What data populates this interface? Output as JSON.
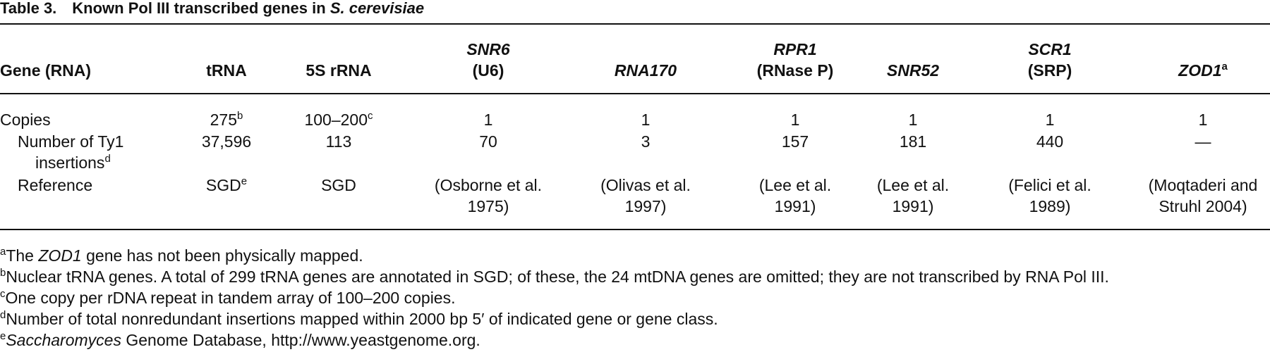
{
  "title": {
    "label": "Table 3.",
    "text": [
      {
        "text": "Known Pol III transcribed genes in "
      },
      {
        "text": "S. cerevisiae",
        "style": "italic"
      }
    ]
  },
  "table": {
    "header": [
      [
        [
          {
            "text": "Gene (RNA)"
          }
        ]
      ],
      [
        [
          {
            "text": "tRNA"
          }
        ]
      ],
      [
        [
          {
            "text": "5S rRNA"
          }
        ]
      ],
      [
        [
          {
            "text": "SNR6",
            "style": "italic"
          }
        ],
        [
          {
            "text": "(U6)"
          }
        ]
      ],
      [
        [
          {
            "text": "RNA170",
            "style": "italic"
          }
        ]
      ],
      [
        [
          {
            "text": "RPR1",
            "style": "italic"
          }
        ],
        [
          {
            "text": "(RNase P)"
          }
        ]
      ],
      [
        [
          {
            "text": "SNR52",
            "style": "italic"
          }
        ]
      ],
      [
        [
          {
            "text": "SCR1",
            "style": "italic"
          }
        ],
        [
          {
            "text": "(SRP)"
          }
        ]
      ],
      [
        [
          {
            "text": "ZOD1",
            "style": "italic"
          },
          {
            "text": "a",
            "style": "sup"
          }
        ]
      ]
    ],
    "rows": [
      [
        [
          [
            {
              "text": "Copies"
            }
          ]
        ],
        [
          [
            {
              "text": "275"
            },
            {
              "text": "b",
              "style": "sup"
            }
          ]
        ],
        [
          [
            {
              "text": "100–200"
            },
            {
              "text": "c",
              "style": "sup"
            }
          ]
        ],
        [
          [
            {
              "text": "1"
            }
          ]
        ],
        [
          [
            {
              "text": "1"
            }
          ]
        ],
        [
          [
            {
              "text": "1"
            }
          ]
        ],
        [
          [
            {
              "text": "1"
            }
          ]
        ],
        [
          [
            {
              "text": "1"
            }
          ]
        ],
        [
          [
            {
              "text": "1"
            }
          ]
        ]
      ],
      [
        [
          [
            {
              "text": "Number of Ty1"
            }
          ],
          [
            {
              "text": "insertions"
            },
            {
              "text": "d",
              "style": "sup"
            }
          ]
        ],
        [
          [
            {
              "text": "37,596"
            }
          ]
        ],
        [
          [
            {
              "text": "113"
            }
          ]
        ],
        [
          [
            {
              "text": "70"
            }
          ]
        ],
        [
          [
            {
              "text": "3"
            }
          ]
        ],
        [
          [
            {
              "text": "157"
            }
          ]
        ],
        [
          [
            {
              "text": "181"
            }
          ]
        ],
        [
          [
            {
              "text": "440"
            }
          ]
        ],
        [
          [
            {
              "text": "—"
            }
          ]
        ]
      ],
      [
        [
          [
            {
              "text": "Reference"
            }
          ]
        ],
        [
          [
            {
              "text": "SGD"
            },
            {
              "text": "e",
              "style": "sup"
            }
          ]
        ],
        [
          [
            {
              "text": "SGD"
            }
          ]
        ],
        [
          [
            {
              "text": "(Osborne et al."
            }
          ],
          [
            {
              "text": "1975)"
            }
          ]
        ],
        [
          [
            {
              "text": "(Olivas et al."
            }
          ],
          [
            {
              "text": "1997)"
            }
          ]
        ],
        [
          [
            {
              "text": "(Lee et al."
            }
          ],
          [
            {
              "text": "1991)"
            }
          ]
        ],
        [
          [
            {
              "text": "(Lee et al."
            }
          ],
          [
            {
              "text": "1991)"
            }
          ]
        ],
        [
          [
            {
              "text": "(Felici et al."
            }
          ],
          [
            {
              "text": "1989)"
            }
          ]
        ],
        [
          [
            {
              "text": "(Moqtaderi and"
            }
          ],
          [
            {
              "text": "Struhl 2004)"
            }
          ]
        ]
      ]
    ]
  },
  "footnotes": [
    [
      {
        "text": "a",
        "style": "sup"
      },
      {
        "text": "The "
      },
      {
        "text": "ZOD1",
        "style": "italic"
      },
      {
        "text": " gene has not been physically mapped."
      }
    ],
    [
      {
        "text": "b",
        "style": "sup"
      },
      {
        "text": "Nuclear tRNA genes. A total of 299 tRNA genes are annotated in SGD; of these, the 24 mtDNA genes are omitted; they are not transcribed by RNA Pol III."
      }
    ],
    [
      {
        "text": "c",
        "style": "sup"
      },
      {
        "text": "One copy per rDNA repeat in tandem array of 100–200 copies."
      }
    ],
    [
      {
        "text": "d",
        "style": "sup"
      },
      {
        "text": "Number of total nonredundant insertions mapped within 2000 bp 5′ of indicated gene or gene class."
      }
    ],
    [
      {
        "text": "e",
        "style": "sup"
      },
      {
        "text": "Saccharomyces",
        "style": "italic"
      },
      {
        "text": " Genome Database, http://www.yeastgenome.org."
      }
    ]
  ]
}
